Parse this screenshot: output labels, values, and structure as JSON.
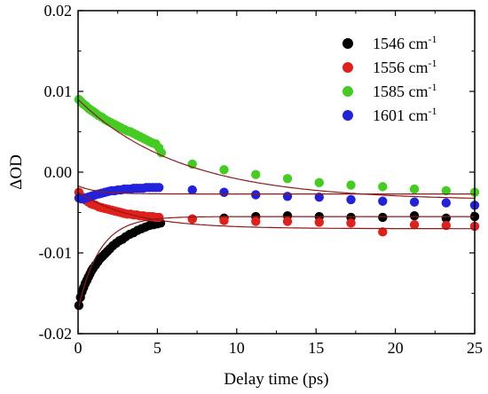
{
  "chart_data": {
    "type": "scatter",
    "xlabel": "Delay time (ps)",
    "ylabel": "ΔOD",
    "xlim": [
      0,
      25
    ],
    "ylim": [
      -0.02,
      0.02
    ],
    "x_ticks": [
      0,
      5,
      10,
      15,
      20,
      25
    ],
    "y_ticks": [
      -0.02,
      -0.01,
      0.0,
      0.01,
      0.02
    ],
    "x_tick_labels": [
      "0",
      "5",
      "10",
      "15",
      "20",
      "25"
    ],
    "y_tick_labels": [
      "-0.02",
      "-0.01",
      "0.00",
      "0.01",
      "0.02"
    ],
    "grid": false,
    "legend_position": "top-right",
    "fit_line_color": "#8B1A1A",
    "series": [
      {
        "name": "1546 cm",
        "superscript": "-1",
        "color": "#000000",
        "amplitude": -0.0115,
        "tau": 1.35,
        "offset": -0.0055,
        "x": [
          0.05,
          0.15,
          0.25,
          0.35,
          0.45,
          0.55,
          0.65,
          0.75,
          0.85,
          0.95,
          1.1,
          1.25,
          1.4,
          1.55,
          1.7,
          1.85,
          2.0,
          2.2,
          2.4,
          2.6,
          2.8,
          3.0,
          3.25,
          3.5,
          3.75,
          4.0,
          4.25,
          4.5,
          4.75,
          5.0,
          5.2,
          7.2,
          9.2,
          11.2,
          13.2,
          15.2,
          17.2,
          19.2,
          21.2,
          23.2,
          25.0
        ],
        "y": [
          -0.0165,
          -0.0155,
          -0.0148,
          -0.0143,
          -0.0138,
          -0.0134,
          -0.013,
          -0.0126,
          -0.0122,
          -0.0119,
          -0.0115,
          -0.0111,
          -0.0107,
          -0.0104,
          -0.0101,
          -0.0098,
          -0.0095,
          -0.0091,
          -0.0088,
          -0.0085,
          -0.0083,
          -0.008,
          -0.0077,
          -0.0075,
          -0.0072,
          -0.007,
          -0.0068,
          -0.0066,
          -0.0065,
          -0.0064,
          -0.0063,
          -0.0058,
          -0.0057,
          -0.0055,
          -0.0054,
          -0.0055,
          -0.0056,
          -0.0056,
          -0.0054,
          -0.0057,
          -0.0055
        ]
      },
      {
        "name": "1556 cm",
        "superscript": "-1",
        "color": "#E0201A",
        "amplitude": 0.0045,
        "tau": 3.5,
        "offset": -0.007,
        "x": [
          0.05,
          0.2,
          0.35,
          0.5,
          0.65,
          0.8,
          0.95,
          1.1,
          1.3,
          1.5,
          1.7,
          1.9,
          2.1,
          2.3,
          2.5,
          2.7,
          2.9,
          3.1,
          3.3,
          3.5,
          3.7,
          3.9,
          4.1,
          4.3,
          4.5,
          4.7,
          4.9,
          5.1,
          7.2,
          9.2,
          11.2,
          13.2,
          15.2,
          17.2,
          19.2,
          21.2,
          23.2,
          25.0
        ],
        "y": [
          -0.0025,
          -0.003,
          -0.0033,
          -0.0035,
          -0.0037,
          -0.0039,
          -0.004,
          -0.0041,
          -0.0043,
          -0.0044,
          -0.0045,
          -0.0046,
          -0.0047,
          -0.0048,
          -0.0049,
          -0.005,
          -0.0051,
          -0.0052,
          -0.0052,
          -0.0053,
          -0.0053,
          -0.0054,
          -0.0054,
          -0.0055,
          -0.0055,
          -0.0055,
          -0.0056,
          -0.0056,
          -0.0058,
          -0.006,
          -0.0061,
          -0.0061,
          -0.0062,
          -0.0063,
          -0.0074,
          -0.0065,
          -0.0066,
          -0.0067
        ]
      },
      {
        "name": "1585 cm",
        "superscript": "-1",
        "color": "#44CC22",
        "amplitude": 0.0125,
        "tau": 6.5,
        "offset": -0.0035,
        "x": [
          0.05,
          0.15,
          0.25,
          0.35,
          0.5,
          0.65,
          0.8,
          0.95,
          1.1,
          1.3,
          1.5,
          1.7,
          1.9,
          2.1,
          2.3,
          2.5,
          2.7,
          2.9,
          3.1,
          3.3,
          3.5,
          3.7,
          3.9,
          4.1,
          4.3,
          4.5,
          4.7,
          4.9,
          5.1,
          5.25,
          7.2,
          9.2,
          11.2,
          13.2,
          15.2,
          17.2,
          19.2,
          21.2,
          23.2,
          25.0
        ],
        "y": [
          0.009,
          0.0088,
          0.0086,
          0.0084,
          0.0082,
          0.0079,
          0.0077,
          0.0075,
          0.0073,
          0.007,
          0.0068,
          0.0065,
          0.0063,
          0.0061,
          0.0059,
          0.0057,
          0.0055,
          0.0053,
          0.0051,
          0.005,
          0.0048,
          0.0046,
          0.0044,
          0.0042,
          0.004,
          0.0038,
          0.0036,
          0.0035,
          0.003,
          0.0024,
          0.001,
          0.0003,
          -0.0003,
          -0.0008,
          -0.0013,
          -0.0016,
          -0.0018,
          -0.0021,
          -0.0023,
          -0.0025
        ]
      },
      {
        "name": "1601 cm",
        "superscript": "-1",
        "color": "#2222DD",
        "amplitude": 0.001,
        "tau": 1.2,
        "offset": -0.0027,
        "x": [
          0.05,
          0.2,
          0.35,
          0.5,
          0.65,
          0.8,
          0.95,
          1.1,
          1.3,
          1.5,
          1.7,
          1.9,
          2.1,
          2.3,
          2.5,
          2.7,
          2.9,
          3.1,
          3.3,
          3.5,
          3.7,
          3.9,
          4.1,
          4.3,
          4.5,
          4.7,
          4.9,
          5.1,
          7.2,
          9.2,
          11.2,
          13.2,
          15.2,
          17.2,
          19.2,
          21.2,
          23.2,
          25.0
        ],
        "y": [
          -0.0032,
          -0.0033,
          -0.0033,
          -0.0032,
          -0.0031,
          -0.003,
          -0.0029,
          -0.0028,
          -0.0027,
          -0.0026,
          -0.0025,
          -0.0024,
          -0.0023,
          -0.0023,
          -0.0022,
          -0.0022,
          -0.0021,
          -0.0021,
          -0.0021,
          -0.002,
          -0.002,
          -0.002,
          -0.002,
          -0.0019,
          -0.0019,
          -0.0019,
          -0.0019,
          -0.0019,
          -0.0022,
          -0.0025,
          -0.0028,
          -0.003,
          -0.0031,
          -0.0034,
          -0.0036,
          -0.0037,
          -0.0038,
          -0.0041
        ]
      }
    ]
  }
}
